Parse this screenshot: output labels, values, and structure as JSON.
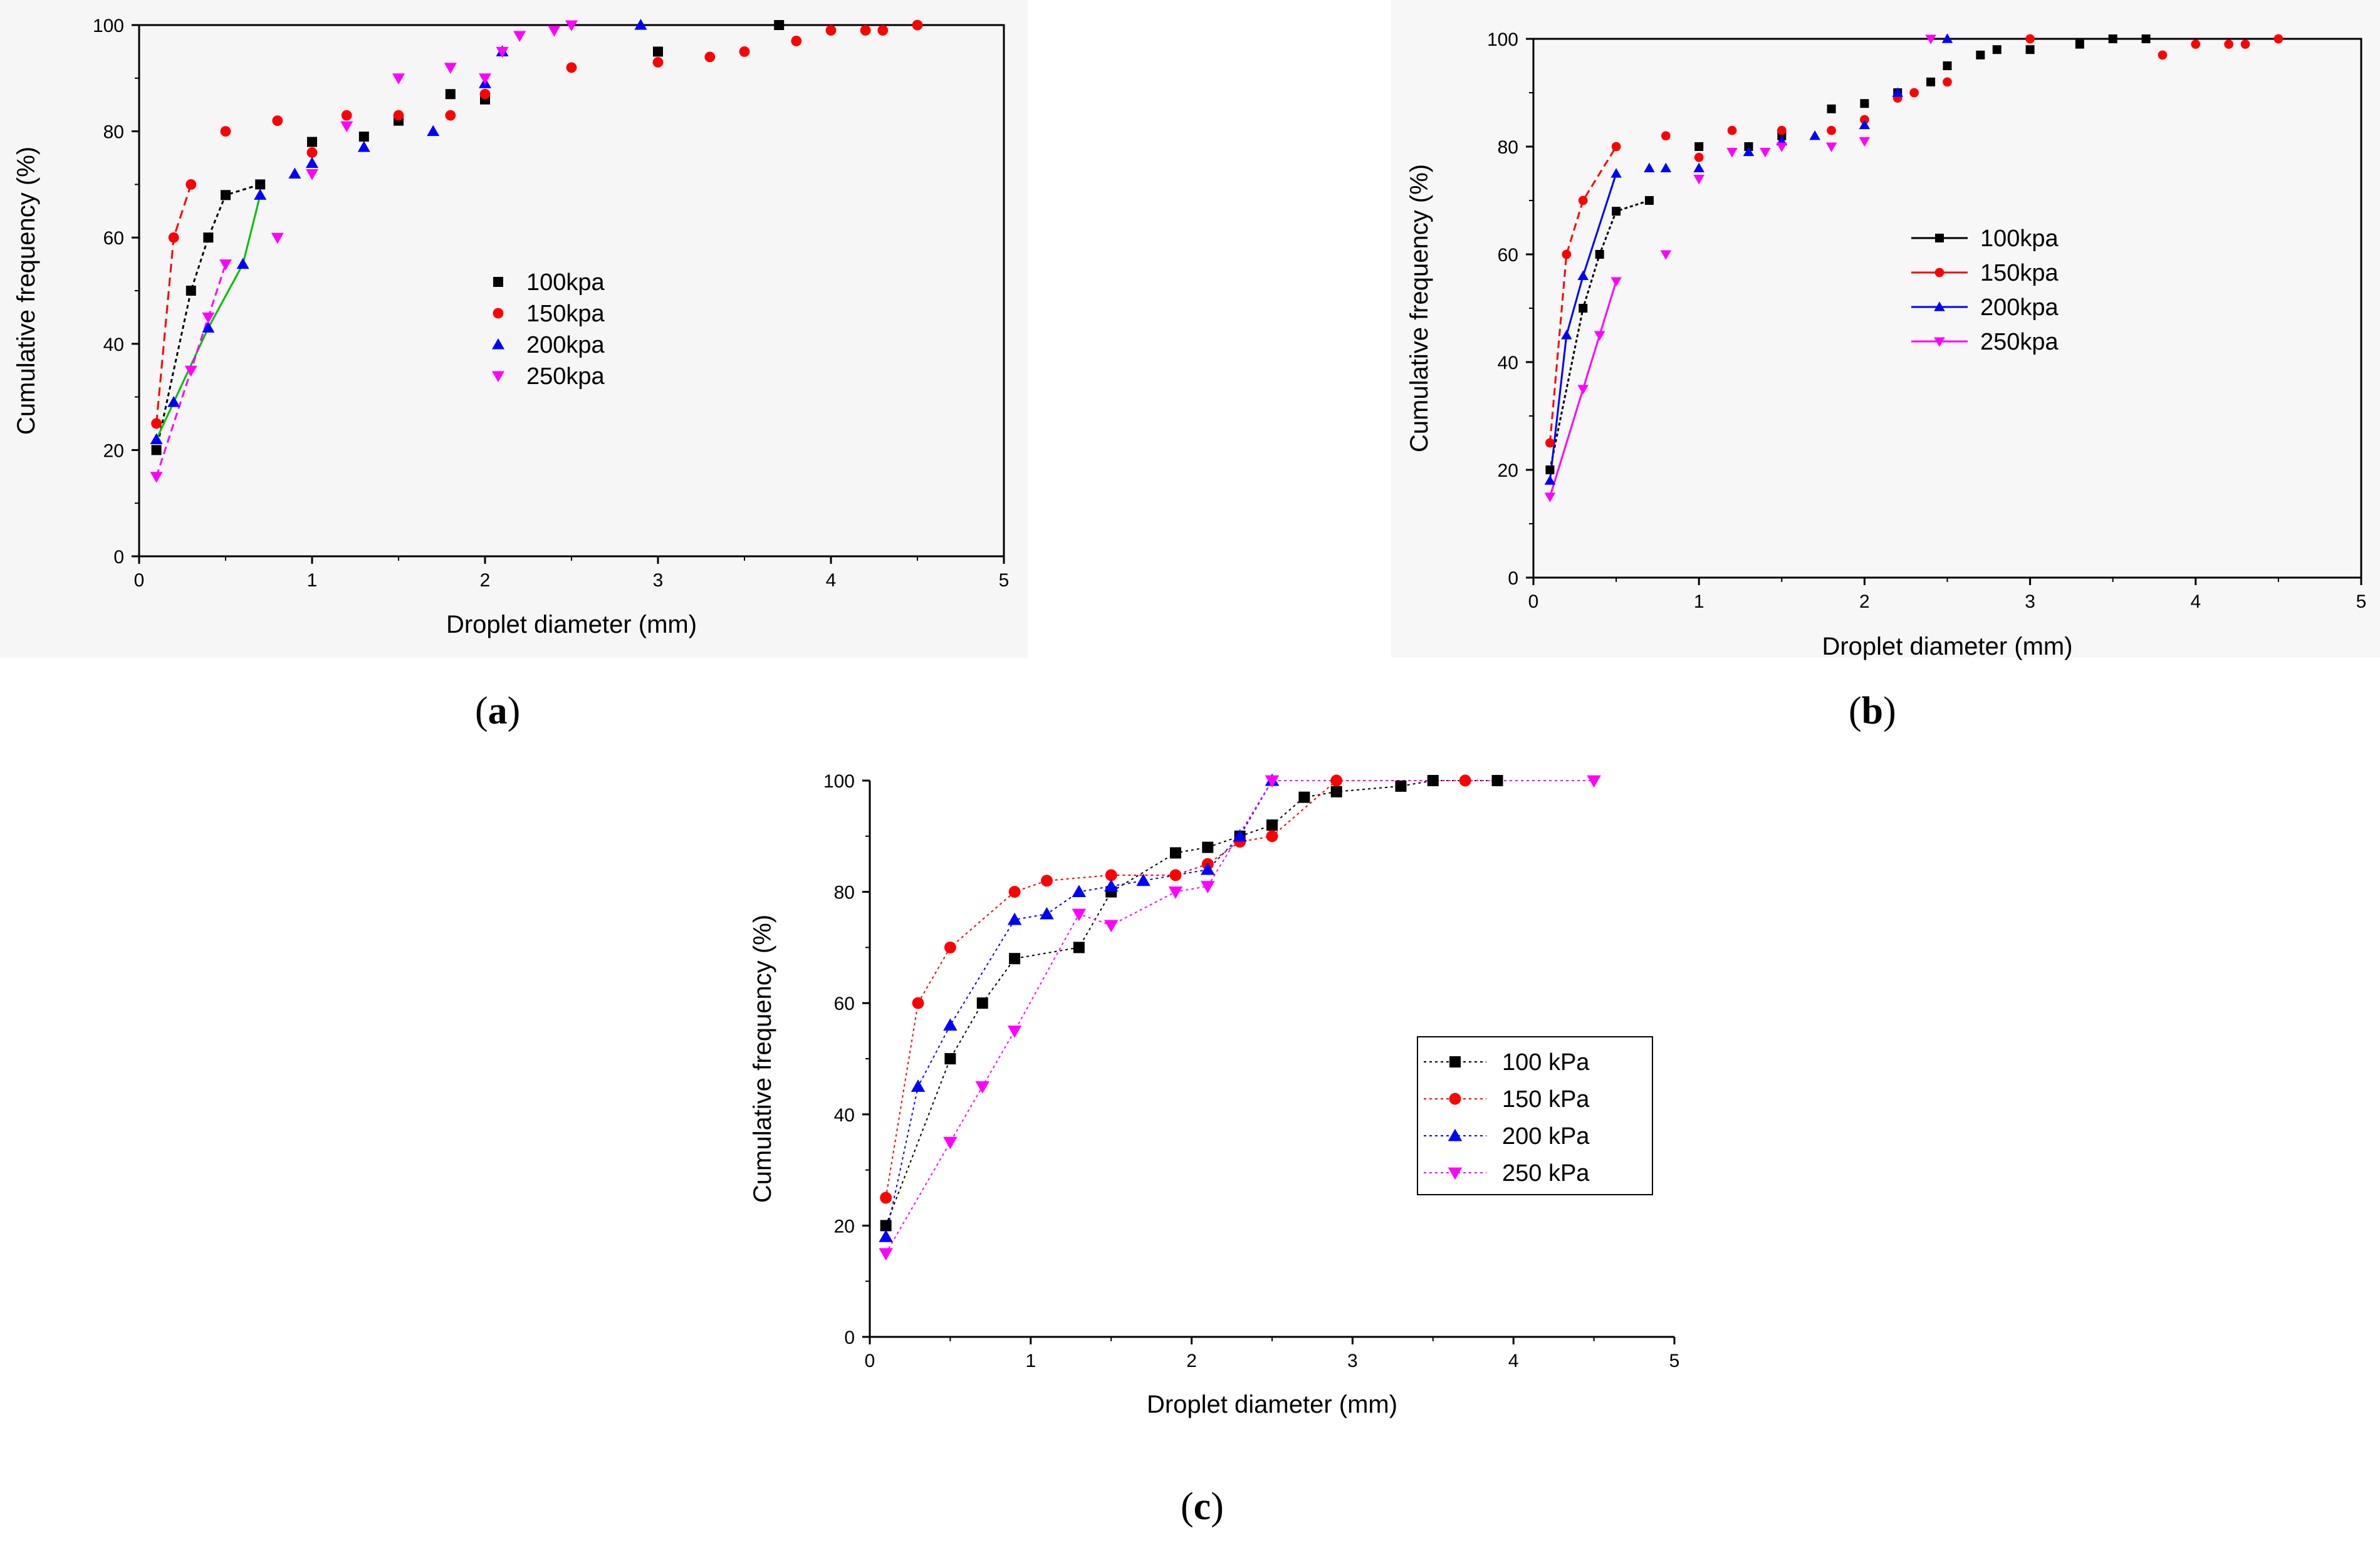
{
  "colors": {
    "s100": "#000000",
    "s150": "#ff0000",
    "s200": "#0000ff",
    "s250": "#ff00ff",
    "connector_a": "#00c000"
  },
  "chart_data": [
    {
      "panel": "a",
      "type": "scatter",
      "title": "",
      "xlabel": "Droplet diameter (mm)",
      "ylabel": "Cumulative frequency (%)",
      "xlim": [
        0,
        5
      ],
      "ylim": [
        0,
        100
      ],
      "xticks": [
        "0",
        "1",
        "2",
        "3",
        "4",
        "5"
      ],
      "yticks": [
        "0",
        "20",
        "40",
        "60",
        "80",
        "100"
      ],
      "grid": false,
      "legend": "center",
      "series": [
        {
          "name": "100kpa",
          "marker": "square",
          "x": [
            0.1,
            0.3,
            0.4,
            0.5,
            0.7,
            1.0,
            1.3,
            1.5,
            1.8,
            2.0,
            3.0,
            3.7
          ],
          "y": [
            20,
            50,
            60,
            68,
            70,
            78,
            79,
            82,
            87,
            86,
            95,
            100
          ]
        },
        {
          "name": "150kpa",
          "marker": "circle",
          "x": [
            0.1,
            0.2,
            0.3,
            0.5,
            0.8,
            1.0,
            1.2,
            1.5,
            1.8,
            2.0,
            2.5,
            3.0,
            3.3,
            3.5,
            3.8,
            4.0,
            4.2,
            4.3,
            4.5
          ],
          "y": [
            25,
            60,
            70,
            80,
            82,
            76,
            83,
            83,
            83,
            87,
            92,
            93,
            94,
            95,
            97,
            99,
            99,
            99,
            100
          ]
        },
        {
          "name": "200kpa",
          "marker": "triangle-up",
          "x": [
            0.1,
            0.2,
            0.4,
            0.6,
            0.7,
            0.9,
            1.0,
            1.3,
            1.7,
            2.0,
            2.1,
            2.9
          ],
          "y": [
            22,
            29,
            43,
            55,
            68,
            72,
            74,
            77,
            80,
            89,
            95,
            100
          ]
        },
        {
          "name": "250kpa",
          "marker": "triangle-down",
          "x": [
            0.1,
            0.3,
            0.4,
            0.5,
            0.8,
            1.0,
            1.2,
            1.5,
            1.8,
            2.0,
            2.1,
            2.2,
            2.4,
            2.5
          ],
          "y": [
            15,
            35,
            45,
            55,
            60,
            72,
            81,
            90,
            92,
            90,
            95,
            98,
            99,
            100
          ]
        }
      ]
    },
    {
      "panel": "b",
      "type": "scatter",
      "title": "",
      "xlabel": "Droplet diameter (mm)",
      "ylabel": "Cumulative frequency (%)",
      "xlim": [
        0,
        5
      ],
      "ylim": [
        0,
        100
      ],
      "xticks": [
        "0",
        "1",
        "2",
        "3",
        "4",
        "5"
      ],
      "yticks": [
        "0",
        "20",
        "40",
        "60",
        "80",
        "100"
      ],
      "grid": false,
      "legend": "center-right",
      "series": [
        {
          "name": "100kpa",
          "marker": "square",
          "x": [
            0.1,
            0.3,
            0.4,
            0.5,
            0.7,
            1.0,
            1.3,
            1.5,
            1.8,
            2.0,
            2.2,
            2.4,
            2.5,
            2.7,
            2.8,
            3.0,
            3.3,
            3.5,
            3.7
          ],
          "y": [
            20,
            50,
            60,
            68,
            70,
            80,
            80,
            82,
            87,
            88,
            90,
            92,
            95,
            97,
            98,
            98,
            99,
            100,
            100
          ]
        },
        {
          "name": "150kpa",
          "marker": "circle",
          "x": [
            0.1,
            0.2,
            0.3,
            0.5,
            0.8,
            1.0,
            1.2,
            1.5,
            1.8,
            2.0,
            2.2,
            2.3,
            2.5,
            3.0,
            3.8,
            4.0,
            4.2,
            4.3,
            4.5
          ],
          "y": [
            25,
            60,
            70,
            80,
            82,
            78,
            83,
            83,
            83,
            85,
            89,
            90,
            92,
            100,
            97,
            99,
            99,
            99,
            100
          ]
        },
        {
          "name": "200kpa",
          "marker": "triangle-up",
          "x": [
            0.1,
            0.2,
            0.3,
            0.5,
            0.7,
            0.8,
            1.0,
            1.3,
            1.5,
            1.7,
            2.0,
            2.2,
            2.5
          ],
          "y": [
            18,
            45,
            56,
            75,
            76,
            76,
            76,
            79,
            81,
            82,
            84,
            90,
            100
          ]
        },
        {
          "name": "250kpa",
          "marker": "triangle-down",
          "x": [
            0.1,
            0.3,
            0.4,
            0.5,
            0.8,
            1.0,
            1.2,
            1.4,
            1.5,
            1.8,
            2.0,
            2.4
          ],
          "y": [
            15,
            35,
            45,
            55,
            60,
            74,
            79,
            79,
            80,
            80,
            81,
            100
          ]
        }
      ]
    },
    {
      "panel": "c",
      "type": "line",
      "title": "",
      "xlabel": "Droplet diameter (mm)",
      "ylabel": "Cumulative frequency (%)",
      "xlim": [
        0,
        5
      ],
      "ylim": [
        0,
        100
      ],
      "xticks": [
        "0",
        "1",
        "2",
        "3",
        "4",
        "5"
      ],
      "yticks": [
        "0",
        "20",
        "40",
        "60",
        "80",
        "100"
      ],
      "grid": false,
      "legend": "bottom-right",
      "series": [
        {
          "name": "100 kPa",
          "marker": "square",
          "x": [
            0.1,
            0.5,
            0.7,
            0.9,
            1.3,
            1.5,
            1.9,
            2.1,
            2.3,
            2.5,
            2.7,
            2.9,
            3.3,
            3.5,
            3.9
          ],
          "y": [
            20,
            50,
            60,
            68,
            70,
            80,
            87,
            88,
            90,
            92,
            97,
            98,
            99,
            100,
            100
          ]
        },
        {
          "name": "150 kPa",
          "marker": "circle",
          "x": [
            0.1,
            0.3,
            0.5,
            0.9,
            1.1,
            1.5,
            1.9,
            2.1,
            2.3,
            2.5,
            2.9,
            3.7
          ],
          "y": [
            25,
            60,
            70,
            80,
            82,
            83,
            83,
            85,
            89,
            90,
            100,
            100
          ]
        },
        {
          "name": "200 kPa",
          "marker": "triangle-up",
          "x": [
            0.1,
            0.3,
            0.5,
            0.9,
            1.1,
            1.3,
            1.5,
            1.7,
            2.1,
            2.3,
            2.5
          ],
          "y": [
            18,
            45,
            56,
            75,
            76,
            80,
            81,
            82,
            84,
            90,
            100
          ]
        },
        {
          "name": "250 kPa",
          "marker": "triangle-down",
          "x": [
            0.1,
            0.5,
            0.7,
            0.9,
            1.3,
            1.5,
            1.9,
            2.1,
            2.5,
            4.5
          ],
          "y": [
            15,
            35,
            45,
            55,
            76,
            74,
            80,
            81,
            100,
            100
          ]
        }
      ]
    }
  ],
  "panel_labels": {
    "a": "a",
    "b": "b",
    "c": "c"
  }
}
